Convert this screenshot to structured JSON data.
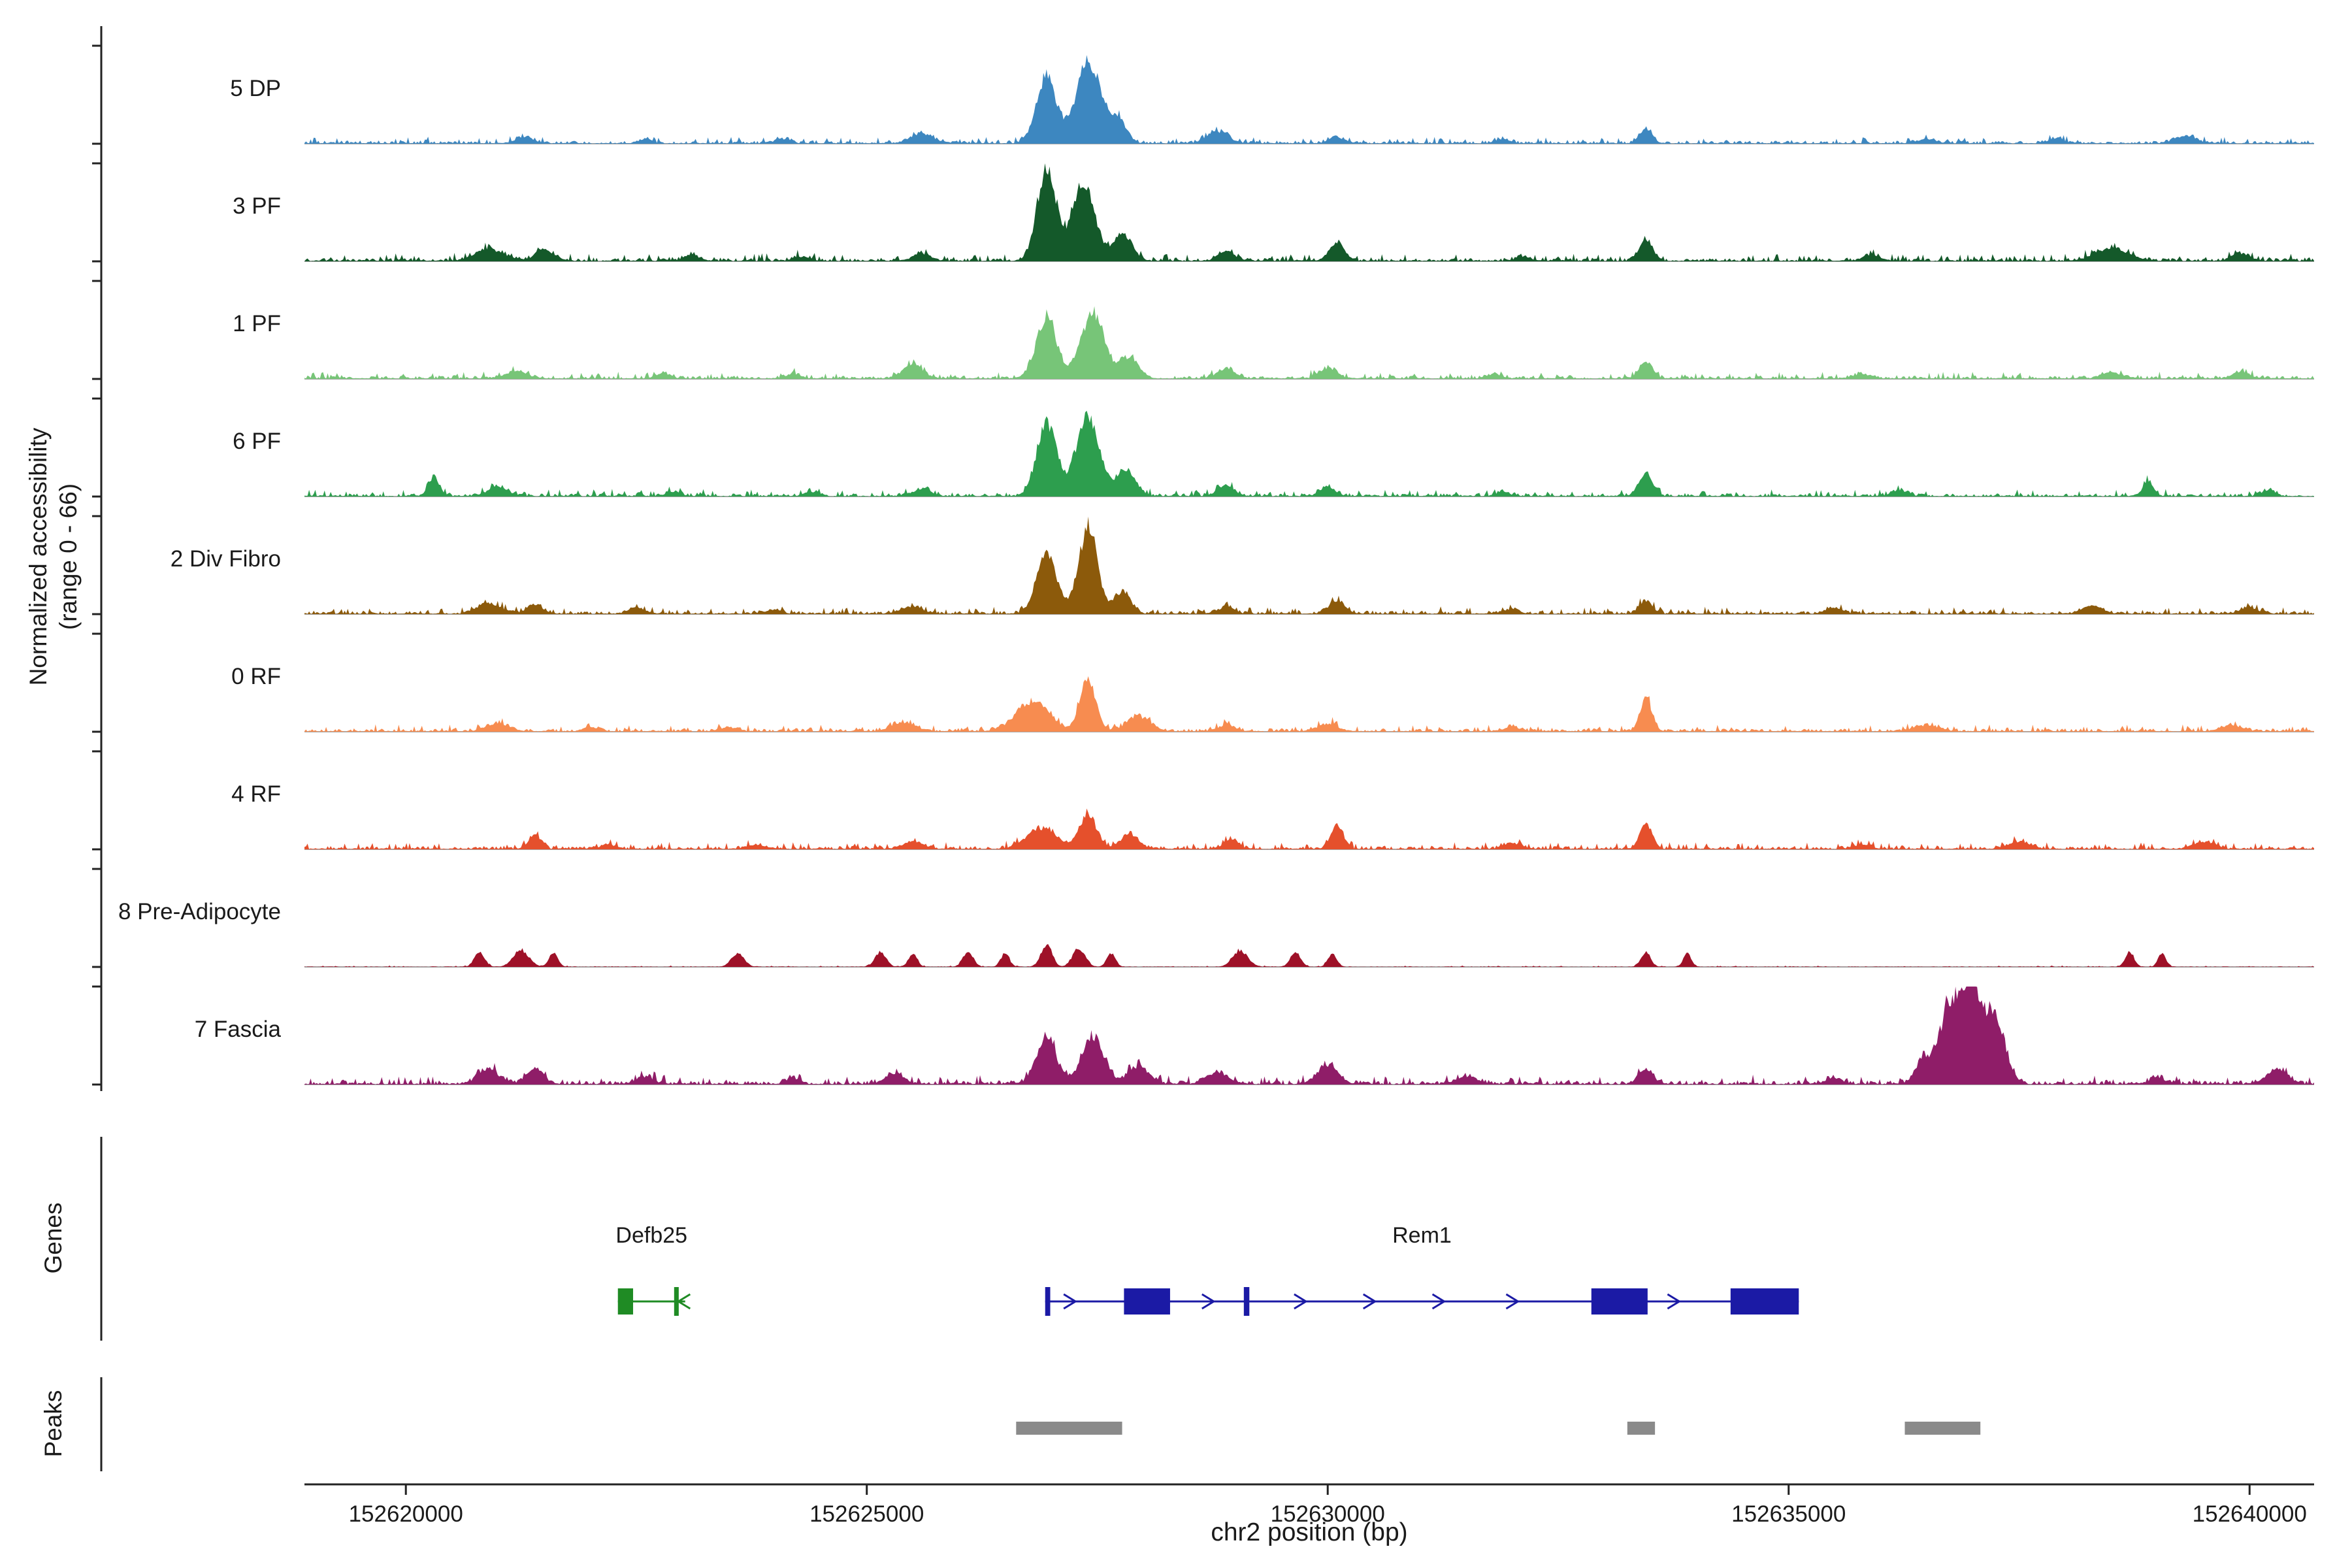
{
  "figure": {
    "y_axis_label_line1": "Normalized accessibility",
    "y_axis_label_line2": "(range 0 - 66)",
    "x_axis_title": "chr2 position (bp)",
    "genes_section_label": "Genes",
    "peaks_section_label": "Peaks"
  },
  "chart_data": {
    "type": "area",
    "title": "",
    "x_axis": {
      "label": "chr2 position (bp)",
      "range_bp": [
        152618900,
        152640700
      ],
      "ticks": [
        152620000,
        152625000,
        152630000,
        152635000,
        152640000
      ]
    },
    "y_axis": {
      "label": "Normalized accessibility (range 0 - 66)",
      "per_track_range": [
        0,
        66
      ]
    },
    "baseline_color": "#a8a8a8",
    "peak_region_color": "#8a8a8a",
    "tracks": [
      {
        "label": "5 DP",
        "color": "#3d87c0",
        "noise": 1.3,
        "peaks": [
          [
            152626950,
            260,
            44
          ],
          [
            152627400,
            300,
            56
          ],
          [
            152627720,
            220,
            16
          ],
          [
            152625600,
            300,
            6
          ],
          [
            152628800,
            260,
            8
          ],
          [
            152633450,
            160,
            10
          ],
          [
            152621300,
            220,
            4
          ],
          [
            152624100,
            180,
            3
          ],
          [
            152630100,
            200,
            4
          ],
          [
            152631900,
            180,
            3
          ],
          [
            152636500,
            220,
            3
          ],
          [
            152637900,
            200,
            3
          ],
          [
            152639300,
            260,
            5
          ],
          [
            152622600,
            160,
            3
          ]
        ]
      },
      {
        "label": "3 PF",
        "color": "#14592a",
        "noise": 1.5,
        "peaks": [
          [
            152626950,
            240,
            62
          ],
          [
            152627350,
            300,
            50
          ],
          [
            152627780,
            240,
            18
          ],
          [
            152620900,
            360,
            8
          ],
          [
            152621500,
            240,
            7
          ],
          [
            152625600,
            220,
            5
          ],
          [
            152628900,
            220,
            6
          ],
          [
            152630100,
            190,
            12
          ],
          [
            152633450,
            170,
            14
          ],
          [
            152632100,
            160,
            3
          ],
          [
            152635900,
            220,
            4
          ],
          [
            152638500,
            420,
            8
          ],
          [
            152639900,
            220,
            5
          ],
          [
            152623100,
            200,
            4
          ],
          [
            152624300,
            180,
            3
          ]
        ]
      },
      {
        "label": "1 PF",
        "color": "#77c578",
        "noise": 1.4,
        "peaks": [
          [
            152626950,
            260,
            40
          ],
          [
            152627450,
            300,
            43
          ],
          [
            152627850,
            240,
            14
          ],
          [
            152625500,
            260,
            9
          ],
          [
            152630000,
            220,
            7
          ],
          [
            152633450,
            170,
            11
          ],
          [
            152621200,
            260,
            5
          ],
          [
            152628900,
            240,
            6
          ],
          [
            152638500,
            260,
            4
          ],
          [
            152622800,
            180,
            3
          ],
          [
            152635800,
            220,
            3
          ],
          [
            152639900,
            220,
            4
          ],
          [
            152624200,
            180,
            3
          ],
          [
            152631800,
            180,
            3
          ]
        ]
      },
      {
        "label": "6 PF",
        "color": "#2d9e4e",
        "noise": 1.4,
        "peaks": [
          [
            152626950,
            250,
            50
          ],
          [
            152627400,
            300,
            54
          ],
          [
            152627820,
            230,
            17
          ],
          [
            152620300,
            140,
            12
          ],
          [
            152621000,
            260,
            6
          ],
          [
            152633450,
            170,
            15
          ],
          [
            152630000,
            190,
            6
          ],
          [
            152628900,
            210,
            7
          ],
          [
            152638900,
            140,
            9
          ],
          [
            152625600,
            220,
            5
          ],
          [
            152636200,
            200,
            4
          ],
          [
            152640200,
            160,
            4
          ],
          [
            152622900,
            180,
            3
          ],
          [
            152624400,
            180,
            3
          ],
          [
            152631900,
            170,
            3
          ]
        ]
      },
      {
        "label": "2 Div Fibro",
        "color": "#8c5a0b",
        "noise": 1.4,
        "peaks": [
          [
            152626950,
            250,
            42
          ],
          [
            152627400,
            240,
            58
          ],
          [
            152627770,
            210,
            15
          ],
          [
            152620900,
            300,
            7
          ],
          [
            152621400,
            200,
            6
          ],
          [
            152630100,
            210,
            8
          ],
          [
            152633450,
            160,
            9
          ],
          [
            152628900,
            190,
            5
          ],
          [
            152625500,
            250,
            5
          ],
          [
            152635500,
            200,
            4
          ],
          [
            152638300,
            260,
            5
          ],
          [
            152640000,
            220,
            4
          ],
          [
            152622500,
            200,
            4
          ],
          [
            152624000,
            180,
            3
          ],
          [
            152632000,
            170,
            3
          ]
        ]
      },
      {
        "label": "0 RF",
        "color": "#f78c50",
        "noise": 1.4,
        "peaks": [
          [
            152626800,
            420,
            20
          ],
          [
            152627400,
            200,
            34
          ],
          [
            152627950,
            300,
            10
          ],
          [
            152633450,
            150,
            22
          ],
          [
            152630000,
            260,
            5
          ],
          [
            152621000,
            300,
            5
          ],
          [
            152625400,
            300,
            6
          ],
          [
            152628900,
            220,
            4
          ],
          [
            152636500,
            300,
            4
          ],
          [
            152639800,
            260,
            4
          ],
          [
            152623500,
            200,
            3
          ],
          [
            152632000,
            200,
            3
          ],
          [
            152622000,
            180,
            3
          ]
        ]
      },
      {
        "label": "4 RF",
        "color": "#e5502c",
        "noise": 1.4,
        "peaks": [
          [
            152626900,
            380,
            14
          ],
          [
            152627400,
            220,
            23
          ],
          [
            152627850,
            220,
            10
          ],
          [
            152630100,
            160,
            16
          ],
          [
            152633450,
            150,
            18
          ],
          [
            152621400,
            160,
            9
          ],
          [
            152625500,
            260,
            5
          ],
          [
            152628950,
            190,
            6
          ],
          [
            152632000,
            200,
            4
          ],
          [
            152637500,
            260,
            5
          ],
          [
            152639500,
            260,
            5
          ],
          [
            152623800,
            200,
            3
          ],
          [
            152622200,
            180,
            3
          ],
          [
            152635800,
            200,
            3
          ]
        ]
      },
      {
        "label": "8 Pre-Adipocyte",
        "color": "#9e1128",
        "noise": 0.25,
        "peaks": [
          [
            152620800,
            130,
            10
          ],
          [
            152621250,
            200,
            11
          ],
          [
            152621600,
            110,
            10
          ],
          [
            152623600,
            160,
            9
          ],
          [
            152625150,
            140,
            10
          ],
          [
            152625500,
            110,
            9
          ],
          [
            152626100,
            130,
            10
          ],
          [
            152626500,
            110,
            9
          ],
          [
            152626950,
            140,
            15
          ],
          [
            152627300,
            160,
            12
          ],
          [
            152627650,
            110,
            9
          ],
          [
            152629050,
            190,
            11
          ],
          [
            152629650,
            130,
            10
          ],
          [
            152630050,
            110,
            9
          ],
          [
            152633450,
            120,
            10
          ],
          [
            152633900,
            100,
            9
          ],
          [
            152638700,
            110,
            10
          ],
          [
            152639050,
            100,
            9
          ]
        ]
      },
      {
        "label": "7 Fascia",
        "color": "#8f1d68",
        "noise": 1.8,
        "peaks": [
          [
            152626950,
            260,
            30
          ],
          [
            152627450,
            280,
            32
          ],
          [
            152627950,
            260,
            12
          ],
          [
            152620900,
            260,
            10
          ],
          [
            152621400,
            210,
            11
          ],
          [
            152630000,
            260,
            13
          ],
          [
            152633450,
            190,
            9
          ],
          [
            152625300,
            260,
            6
          ],
          [
            152628800,
            260,
            8
          ],
          [
            152631500,
            260,
            5
          ],
          [
            152636750,
            300,
            48
          ],
          [
            152637000,
            280,
            62
          ],
          [
            152637260,
            240,
            38
          ],
          [
            152636450,
            200,
            14
          ],
          [
            152640300,
            260,
            10
          ],
          [
            152635500,
            200,
            4
          ],
          [
            152639000,
            210,
            4
          ],
          [
            152622600,
            200,
            5
          ],
          [
            152624200,
            180,
            4
          ]
        ]
      }
    ],
    "genes": [
      {
        "name": "Defb25",
        "color": "#1f8b24",
        "strand": "-",
        "line": [
          152622300,
          152623030
        ],
        "exons": [
          [
            152622300,
            152622465
          ]
        ],
        "bars": [
          [
            152622910,
            152622960
          ]
        ],
        "chevrons": [
          152623020
        ]
      },
      {
        "name": "Rem1",
        "color": "#1b1aa5",
        "strand": "+",
        "line": [
          152626935,
          152635110
        ],
        "exons": [
          [
            152627790,
            152628290
          ],
          [
            152632860,
            152633470
          ],
          [
            152634370,
            152635110
          ]
        ],
        "bars": [
          [
            152626935,
            152626990
          ],
          [
            152629090,
            152629150
          ]
        ],
        "chevrons": [
          152627200,
          152628700,
          152629700,
          152630450,
          152631200,
          152632000,
          152633750
        ]
      }
    ],
    "peak_regions": [
      [
        152626620,
        152627770
      ],
      [
        152633250,
        152633550
      ],
      [
        152636260,
        152637080
      ]
    ]
  }
}
